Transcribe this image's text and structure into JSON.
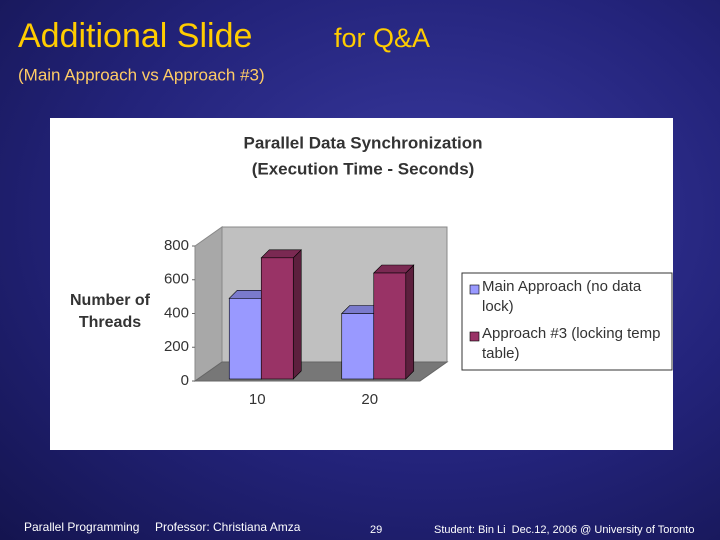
{
  "slide": {
    "title": "Additional Slide",
    "title_suffix": "for Q&A",
    "subtitle": "(Main Approach vs Approach #3)",
    "footer": {
      "course": "Parallel Programming",
      "professor": "Professor: Christiana Amza",
      "page": "29",
      "student": "Student: Bin Li  Dec.12, 2006 @ University of Toronto"
    }
  },
  "chart_data": {
    "type": "bar",
    "title": "Parallel Data Synchronization",
    "subtitle": "(Execution Time - Seconds)",
    "y_label": "Number of Threads",
    "categories": [
      "10",
      "20"
    ],
    "series": [
      {
        "name": "Main Approach (no data lock)",
        "color": "#9999ff",
        "values": [
          490,
          400
        ]
      },
      {
        "name": "Approach #3 (locking temp table)",
        "color": "#993366",
        "values": [
          730,
          640
        ]
      }
    ],
    "ylim": [
      0,
      800
    ],
    "yticks": [
      0,
      200,
      400,
      600,
      800
    ],
    "grid": false,
    "legend": "right"
  }
}
